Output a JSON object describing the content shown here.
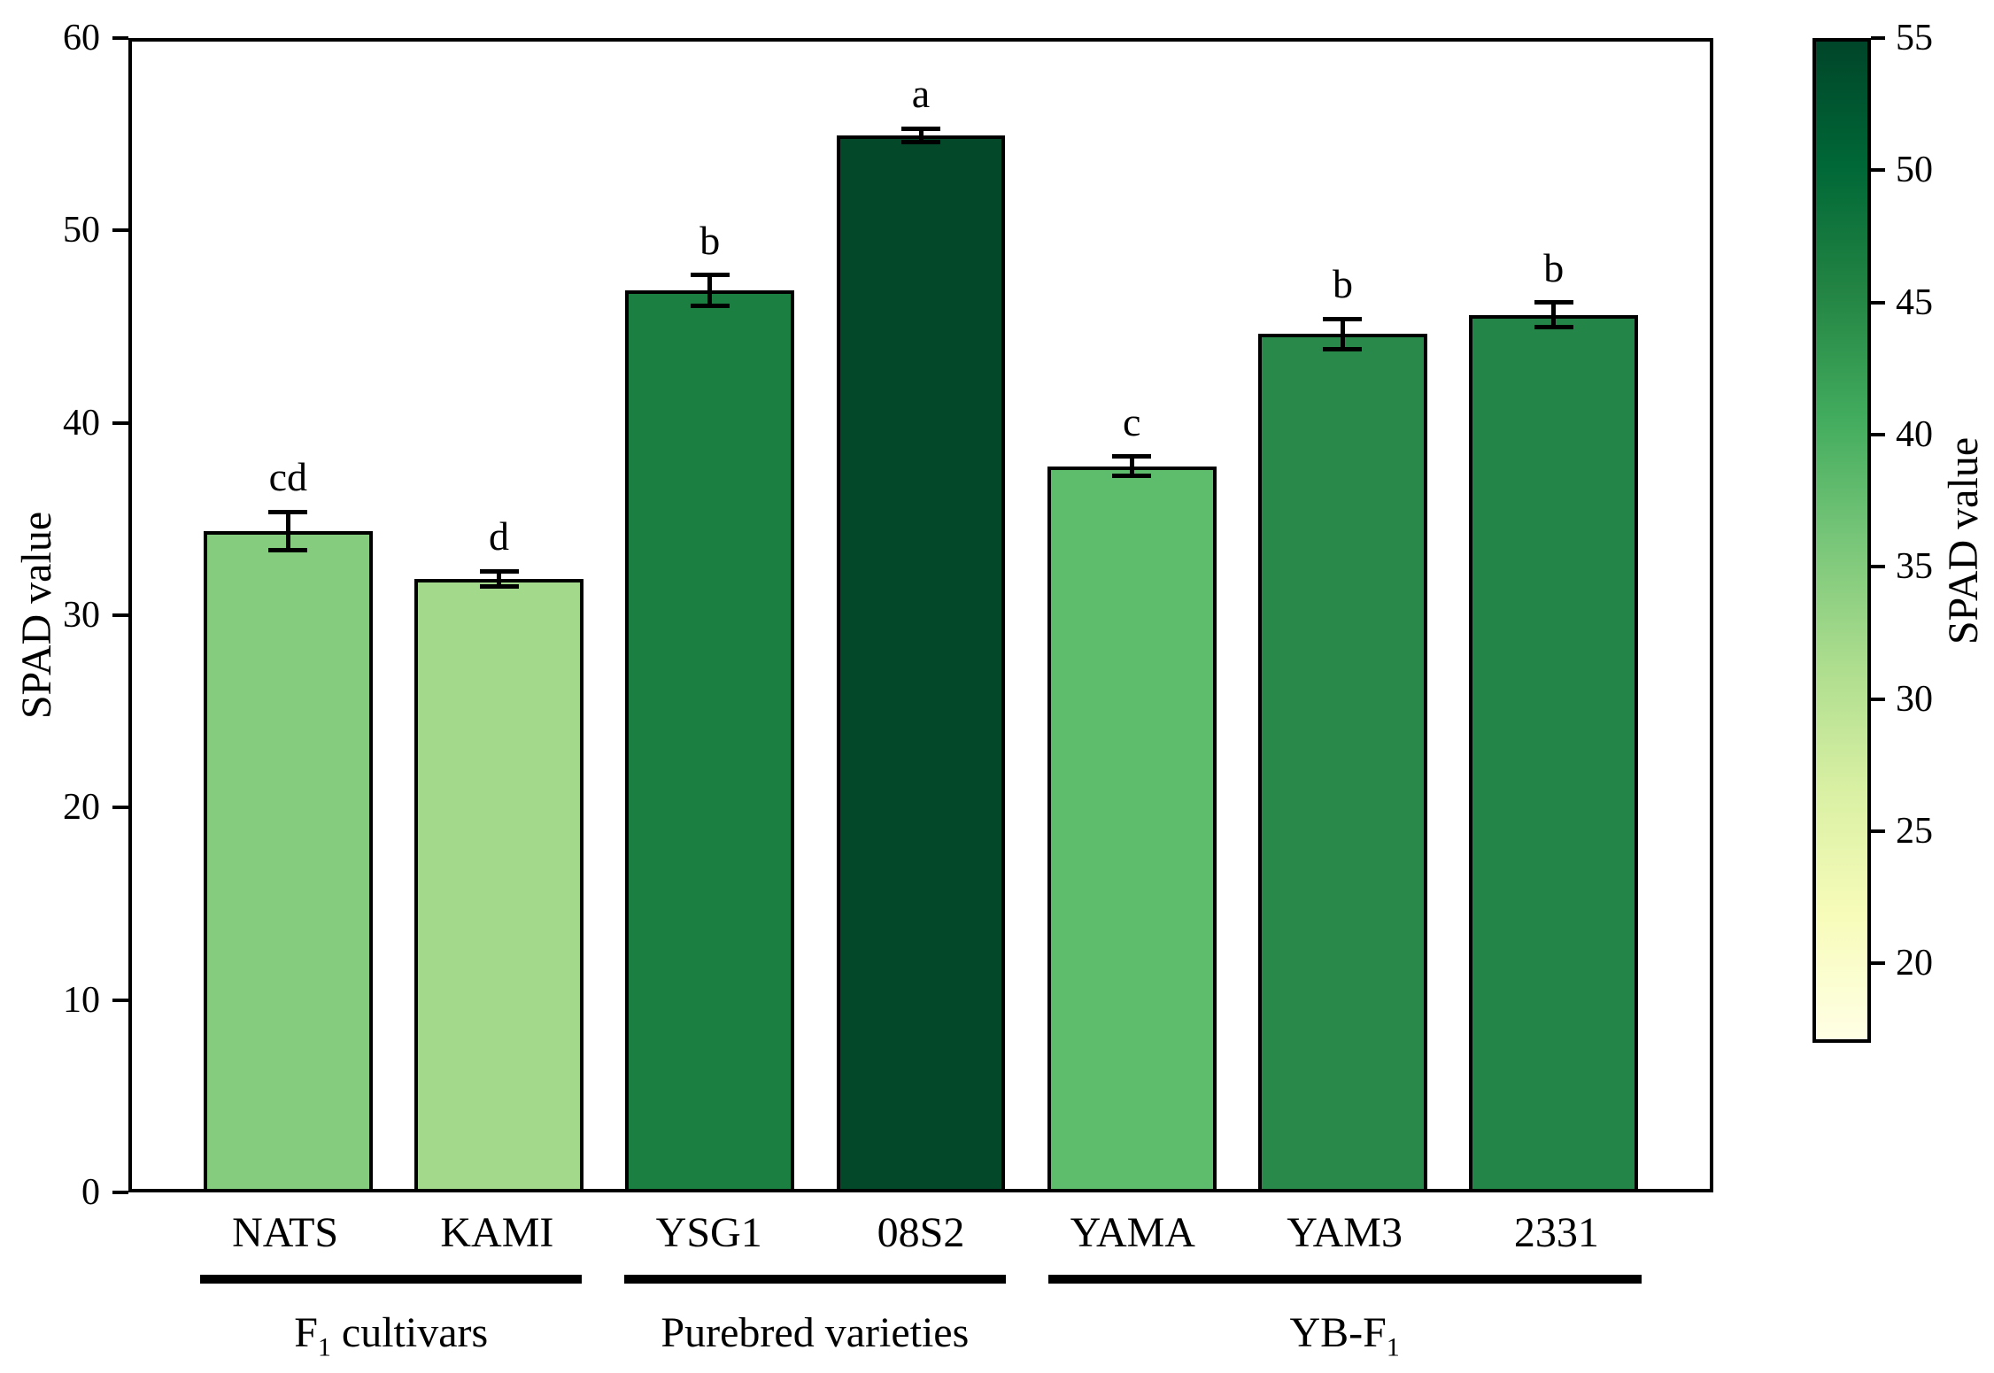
{
  "chart_data": {
    "type": "bar",
    "title": "",
    "categories": [
      "NATS",
      "KAMI",
      "YSG1",
      "08S2",
      "YAMA",
      "YAM3",
      "2331"
    ],
    "values": [
      34.4,
      31.9,
      47.0,
      55.1,
      37.8,
      44.7,
      45.7
    ],
    "errors": [
      1.0,
      0.4,
      0.8,
      0.35,
      0.5,
      0.8,
      0.65
    ],
    "sig_letters": [
      "cd",
      "d",
      "b",
      "a",
      "c",
      "b",
      "b"
    ],
    "bar_colors": [
      "#85cc7e",
      "#a3d98a",
      "#1b7f41",
      "#04482a",
      "#5ebc6d",
      "#28894a",
      "#238548"
    ],
    "bar_edge_color": "#000000",
    "ylabel": "SPAD value",
    "xlabel": "",
    "ylim": [
      0,
      60
    ],
    "yticks": [
      "0",
      "10",
      "20",
      "30",
      "40",
      "50",
      "60"
    ],
    "ytick_values": [
      0,
      10,
      20,
      30,
      40,
      50,
      60
    ],
    "grid": "off",
    "legend": "none",
    "groups": [
      {
        "label_pre": "F",
        "label_sub": "1",
        "label_post": " cultivars",
        "start": 0,
        "end": 1
      },
      {
        "label_pre": "Purebred varieties",
        "label_sub": "",
        "label_post": "",
        "start": 2,
        "end": 3
      },
      {
        "label_pre": "YB-F",
        "label_sub": "1",
        "label_post": "",
        "start": 4,
        "end": 6
      }
    ],
    "colorbar": {
      "label": "SPAD value",
      "tick_labels": [
        "20",
        "25",
        "30",
        "35",
        "40",
        "45",
        "50",
        "55"
      ],
      "tick_values": [
        20,
        25,
        30,
        35,
        40,
        45,
        50,
        55
      ],
      "vmin": 17,
      "vmax": 55,
      "colormap_name": "YlGn",
      "gradient_stops": [
        "#ffffe5",
        "#f7fcb9",
        "#d9f0a3",
        "#addd8e",
        "#78c679",
        "#41ab5d",
        "#238443",
        "#006837",
        "#004529"
      ]
    }
  }
}
